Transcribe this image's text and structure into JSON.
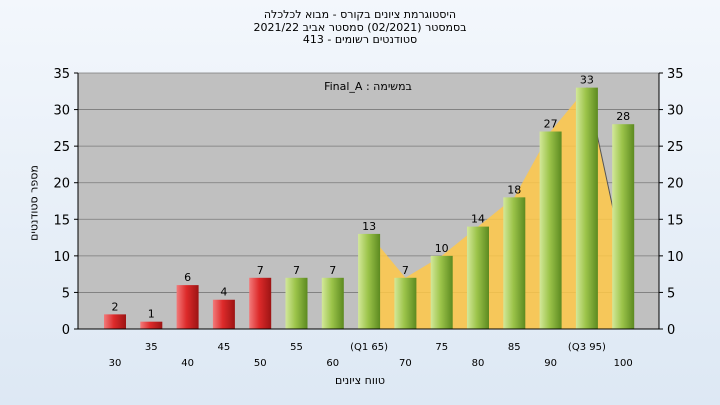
{
  "chart_data": {
    "type": "bar",
    "title_lines": [
      "היסטוגרמת ציונים בקורס - מבוא לכלכלה",
      "בסמסטר  (02/2021)  סמסטר אביב 2021/22",
      "סטודנטים רשומים - 413"
    ],
    "annotation": "במשימה : Final_A",
    "xlabel": "טווח ציונים",
    "ylabel": "מספר סטודנטים",
    "ylim": [
      0,
      35
    ],
    "yticks": [
      0,
      5,
      10,
      15,
      20,
      25,
      30,
      35
    ],
    "grid": true,
    "categories_upper": [
      "35",
      "45",
      "55",
      "(Q1 65)",
      "75",
      "85",
      "(Q3 95)"
    ],
    "categories_lower": [
      "30",
      "40",
      "50",
      "60",
      "70",
      "80",
      "90",
      "100"
    ],
    "bars": [
      {
        "category": "30",
        "value": 2,
        "color": "red"
      },
      {
        "category": "35",
        "value": 1,
        "color": "red"
      },
      {
        "category": "40",
        "value": 6,
        "color": "red"
      },
      {
        "category": "45",
        "value": 4,
        "color": "red"
      },
      {
        "category": "50",
        "value": 7,
        "color": "red"
      },
      {
        "category": "55",
        "value": 7,
        "color": "green"
      },
      {
        "category": "60",
        "value": 7,
        "color": "green"
      },
      {
        "category": "65",
        "value": 13,
        "color": "green"
      },
      {
        "category": "70",
        "value": 7,
        "color": "green"
      },
      {
        "category": "75",
        "value": 10,
        "color": "green"
      },
      {
        "category": "80",
        "value": 14,
        "color": "green"
      },
      {
        "category": "85",
        "value": 18,
        "color": "green"
      },
      {
        "category": "90",
        "value": 27,
        "color": "green"
      },
      {
        "category": "95",
        "value": 33,
        "color": "green"
      },
      {
        "category": "100",
        "value": 28,
        "color": "green"
      }
    ],
    "data_labels": [
      "2",
      "1",
      "6",
      "4",
      "7",
      "7",
      "7",
      "13",
      "7",
      "10",
      "14",
      "18",
      "27",
      "33",
      "28"
    ],
    "area_values": [
      13,
      7,
      10,
      14,
      18,
      27,
      33,
      10
    ],
    "colors": {
      "plot_bg": "#c0c0c0",
      "red_bar": "#dd2a2a",
      "green_bar": "#8fbf3a",
      "area": "#ffc848",
      "grid": "#7a7a7a"
    }
  }
}
